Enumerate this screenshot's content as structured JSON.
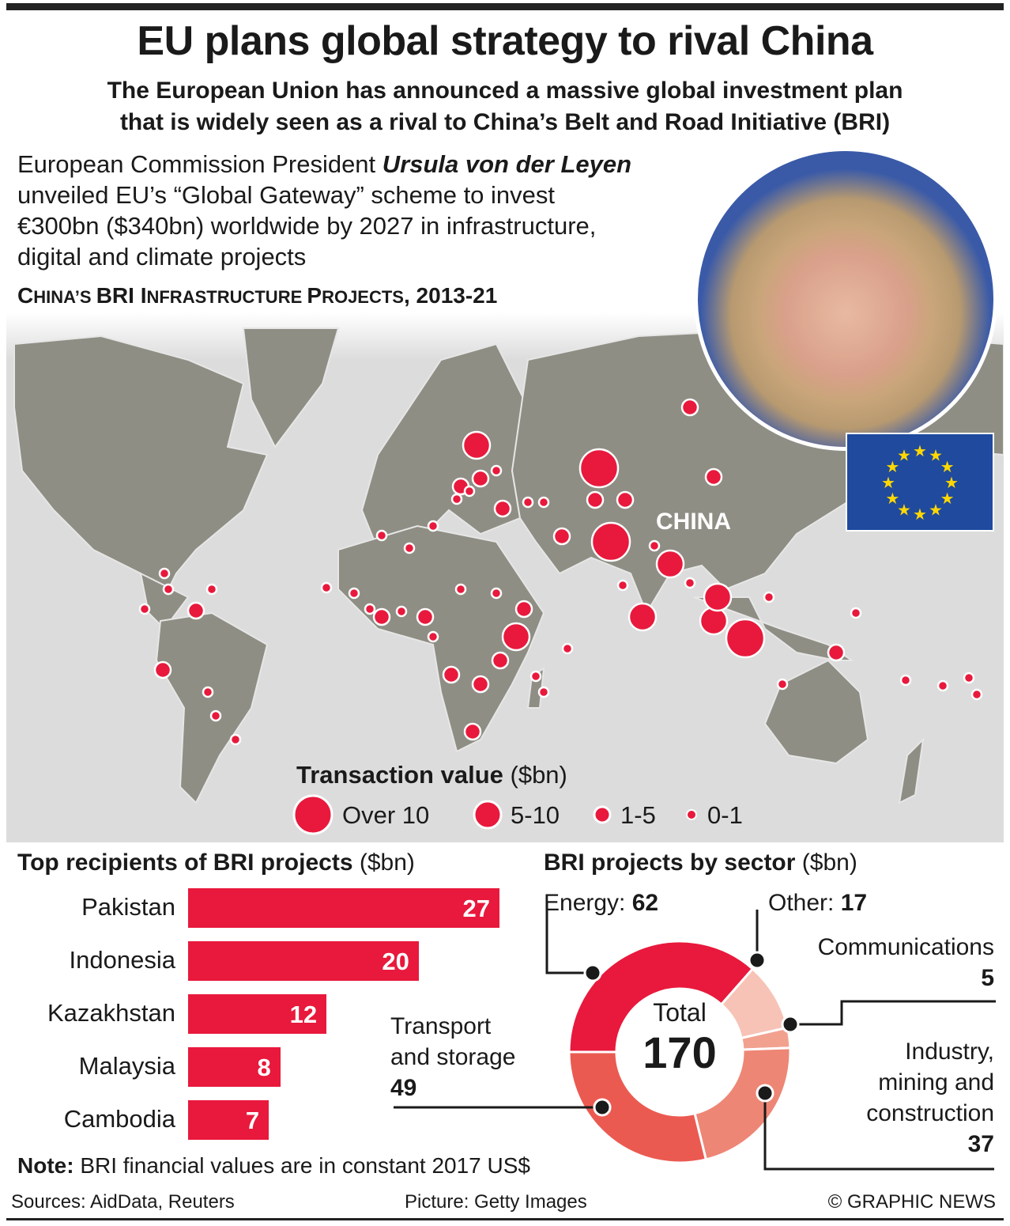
{
  "header": {
    "title": "EU plans global strategy to rival China",
    "subtitle_line1": "The European Union has announced a massive global investment plan",
    "subtitle_line2": "that is widely seen as a rival to China’s Belt and Road Initiative (BRI)"
  },
  "intro": {
    "line1_pre": "European Commission President ",
    "line1_name": "Ursula von der Leyen",
    "line2": "unveiled EU’s “Global Gateway” scheme to invest",
    "line3": "€300bn ($340bn) worldwide by 2027 in infrastructure,",
    "line4": "digital and climate projects"
  },
  "map": {
    "title_c1": "C",
    "title_r1": "HINA’S ",
    "title_c2": "BRI I",
    "title_r2": "NFRASTRUCTURE ",
    "title_c3": "P",
    "title_r3": "ROJECTS",
    "title_end": ", 2013-21",
    "china_label": "CHINA",
    "legend_title": "Transaction value",
    "legend_unit": " ($bn)",
    "legend": [
      {
        "label": "Over 10"
      },
      {
        "label": "5-10"
      },
      {
        "label": "1-5"
      },
      {
        "label": "0-1"
      }
    ],
    "colors": {
      "land": "#8f8e84",
      "sea": "#dcdcdc",
      "dot": "#e8193c"
    }
  },
  "chart_data": [
    {
      "type": "bar",
      "title": "Top recipients of BRI projects",
      "unit": " ($bn)",
      "categories": [
        "Pakistan",
        "Indonesia",
        "Kazakhstan",
        "Malaysia",
        "Cambodia"
      ],
      "values": [
        27,
        20,
        12,
        8,
        7
      ],
      "color": "#e8193c"
    },
    {
      "type": "pie",
      "title": "BRI projects by sector",
      "unit": " ($bn)",
      "center_label": "Total",
      "center_value": "170",
      "slices": [
        {
          "name": "Energy",
          "value": 62,
          "color": "#e8193c"
        },
        {
          "name": "Other",
          "value": 17,
          "color": "#f7c3b6"
        },
        {
          "name": "Communications",
          "value": 5,
          "color": "#f2a18f"
        },
        {
          "name": "Industry, mining and construction",
          "value": 37,
          "color": "#ee8675"
        },
        {
          "name": "Transport and storage",
          "value": 49,
          "color": "#eb5a51"
        }
      ]
    }
  ],
  "labels": {
    "energy": "Energy: ",
    "energy_v": "62",
    "other": "Other: ",
    "other_v": "17",
    "comms": "Communications",
    "comms_v": "5",
    "ind1": "Industry,",
    "ind2": "mining and",
    "ind3": "construction",
    "ind_v": "37",
    "tr1": "Transport",
    "tr2": "and storage",
    "tr_v": "49"
  },
  "note": {
    "bold": "Note:",
    "text": " BRI financial values are in constant 2017 US$"
  },
  "footer": {
    "sources": "Sources: AidData, Reuters",
    "picture": "Picture: Getty Images",
    "credit": "© GRAPHIC NEWS"
  }
}
